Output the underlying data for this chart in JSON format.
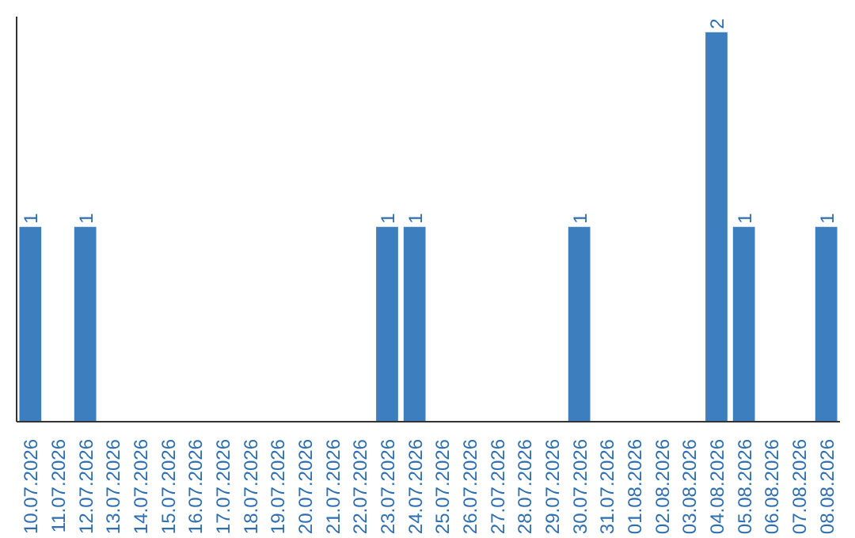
{
  "chart_data": {
    "type": "bar",
    "categories": [
      "10.07.2026",
      "11.07.2026",
      "12.07.2026",
      "13.07.2026",
      "14.07.2026",
      "15.07.2026",
      "16.07.2026",
      "17.07.2026",
      "18.07.2026",
      "19.07.2026",
      "20.07.2026",
      "21.07.2026",
      "22.07.2026",
      "23.07.2026",
      "24.07.2026",
      "25.07.2026",
      "26.07.2026",
      "27.07.2026",
      "28.07.2026",
      "29.07.2026",
      "30.07.2026",
      "31.07.2026",
      "01.08.2026",
      "02.08.2026",
      "03.08.2026",
      "04.08.2026",
      "05.08.2026",
      "06.08.2026",
      "07.08.2026",
      "08.08.2026"
    ],
    "values": [
      1,
      0,
      1,
      0,
      0,
      0,
      0,
      0,
      0,
      0,
      0,
      0,
      0,
      1,
      1,
      0,
      0,
      0,
      0,
      0,
      1,
      0,
      0,
      0,
      0,
      2,
      1,
      0,
      0,
      1
    ],
    "value_labels": [
      "1",
      null,
      "1",
      null,
      null,
      null,
      null,
      null,
      null,
      null,
      null,
      null,
      null,
      "1",
      "1",
      null,
      null,
      null,
      null,
      null,
      "1",
      null,
      null,
      null,
      null,
      "2",
      "1",
      null,
      null,
      "1"
    ],
    "color": "#3d7ebf",
    "ylim": [
      0,
      2.08
    ],
    "tick_labels": "x",
    "grid": false
  }
}
